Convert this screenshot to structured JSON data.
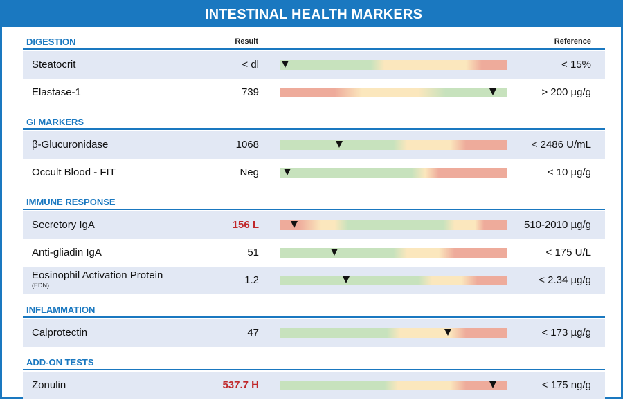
{
  "title": "INTESTINAL HEALTH MARKERS",
  "headers": {
    "result": "Result",
    "reference": "Reference"
  },
  "colors": {
    "accent": "#1a78c0",
    "flag": "#c0282a",
    "green": "#c7e2bd",
    "yellow": "#fbe7bd",
    "red": "#eeab9b",
    "row_shade": "#e2e8f4"
  },
  "chart_data": {
    "type": "table",
    "sections": [
      {
        "title": "DIGESTION",
        "show_column_heads": true,
        "rows": [
          {
            "name": "Steatocrit",
            "sub": "",
            "result": "< dl",
            "flag": false,
            "reference": "< 15%",
            "scale": "low-good",
            "marker": 0.02,
            "green_end": 0.4,
            "red_start": 0.87
          },
          {
            "name": "Elastase-1",
            "sub": "",
            "result": "739",
            "flag": false,
            "reference": "> 200 µg/g",
            "scale": "high-good",
            "marker": 0.94,
            "green_end": 0.75,
            "red_start": 0.32
          }
        ]
      },
      {
        "title": "GI MARKERS",
        "show_column_heads": false,
        "rows": [
          {
            "name": "β-Glucuronidase",
            "sub": "",
            "result": "1068",
            "flag": false,
            "reference": "< 2486 U/mL",
            "scale": "low-good",
            "marker": 0.26,
            "green_end": 0.5,
            "red_start": 0.8
          },
          {
            "name": "Occult Blood - FIT",
            "sub": "",
            "result": "Neg",
            "flag": false,
            "reference": "< 10 µg/g",
            "scale": "low-good",
            "marker": 0.03,
            "green_end": 0.58,
            "red_start": 0.68
          }
        ]
      },
      {
        "title": "IMMUNE RESPONSE",
        "show_column_heads": false,
        "rows": [
          {
            "name": "Secretory IgA",
            "sub": "",
            "result": "156 L",
            "flag": true,
            "reference": "510-2010 µg/g",
            "scale": "range-good",
            "marker": 0.06,
            "green_from": 0.3,
            "green_to": 0.72
          },
          {
            "name": "Anti-gliadin IgA",
            "sub": "",
            "result": "51",
            "flag": false,
            "reference": "< 175 U/L",
            "scale": "low-good",
            "marker": 0.24,
            "green_end": 0.5,
            "red_start": 0.75
          },
          {
            "name": "Eosinophil Activation Protein",
            "sub": "(EDN)",
            "result": "1.2",
            "flag": false,
            "reference": "< 2.34 µg/g",
            "scale": "low-good",
            "marker": 0.29,
            "green_end": 0.61,
            "red_start": 0.85
          }
        ]
      },
      {
        "title": "INFLAMMATION",
        "show_column_heads": false,
        "rows": [
          {
            "name": "Calprotectin",
            "sub": "",
            "result": "47",
            "flag": false,
            "reference": "< 173 µg/g",
            "scale": "low-good",
            "marker": 0.74,
            "green_end": 0.47,
            "red_start": 0.8
          }
        ]
      },
      {
        "title": "ADD-ON TESTS",
        "show_column_heads": false,
        "rows": [
          {
            "name": "Zonulin",
            "sub": "",
            "result": "537.7 H",
            "flag": true,
            "reference": "< 175 ng/g",
            "scale": "low-good",
            "marker": 0.94,
            "green_end": 0.46,
            "red_start": 0.8
          }
        ]
      }
    ]
  }
}
